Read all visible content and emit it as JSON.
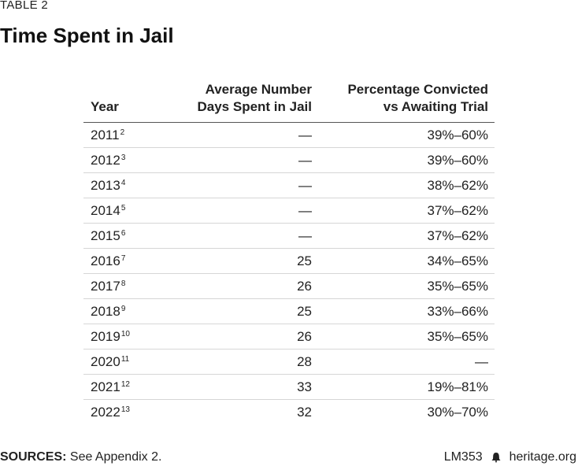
{
  "table_label": "TABLE 2",
  "title": "Time Spent in Jail",
  "headers": {
    "year": "Year",
    "days_line1": "Average Number",
    "days_line2": "Days Spent in Jail",
    "pct_line1": "Percentage Convicted",
    "pct_line2": "vs Awaiting Trial"
  },
  "rows": [
    {
      "year": "2011",
      "note": "2",
      "days": "—",
      "pct": "39%–60%"
    },
    {
      "year": "2012",
      "note": "3",
      "days": "—",
      "pct": "39%–60%"
    },
    {
      "year": "2013",
      "note": "4",
      "days": "—",
      "pct": "38%–62%"
    },
    {
      "year": "2014",
      "note": "5",
      "days": "—",
      "pct": "37%–62%"
    },
    {
      "year": "2015",
      "note": "6",
      "days": "—",
      "pct": "37%–62%"
    },
    {
      "year": "2016",
      "note": "7",
      "days": "25",
      "pct": "34%–65%"
    },
    {
      "year": "2017",
      "note": "8",
      "days": "26",
      "pct": "35%–65%"
    },
    {
      "year": "2018",
      "note": "9",
      "days": "25",
      "pct": "33%–66%"
    },
    {
      "year": "2019",
      "note": "10",
      "days": "26",
      "pct": "35%–65%"
    },
    {
      "year": "2020",
      "note": "11",
      "days": "28",
      "pct": "—"
    },
    {
      "year": "2021",
      "note": "12",
      "days": "33",
      "pct": "19%–81%"
    },
    {
      "year": "2022",
      "note": "13",
      "days": "32",
      "pct": "30%–70%"
    }
  ],
  "footer": {
    "sources_label": "SOURCES:",
    "sources_text": " See Appendix 2.",
    "code": "LM353",
    "site": "heritage.org",
    "icon": "liberty-bell-icon"
  }
}
